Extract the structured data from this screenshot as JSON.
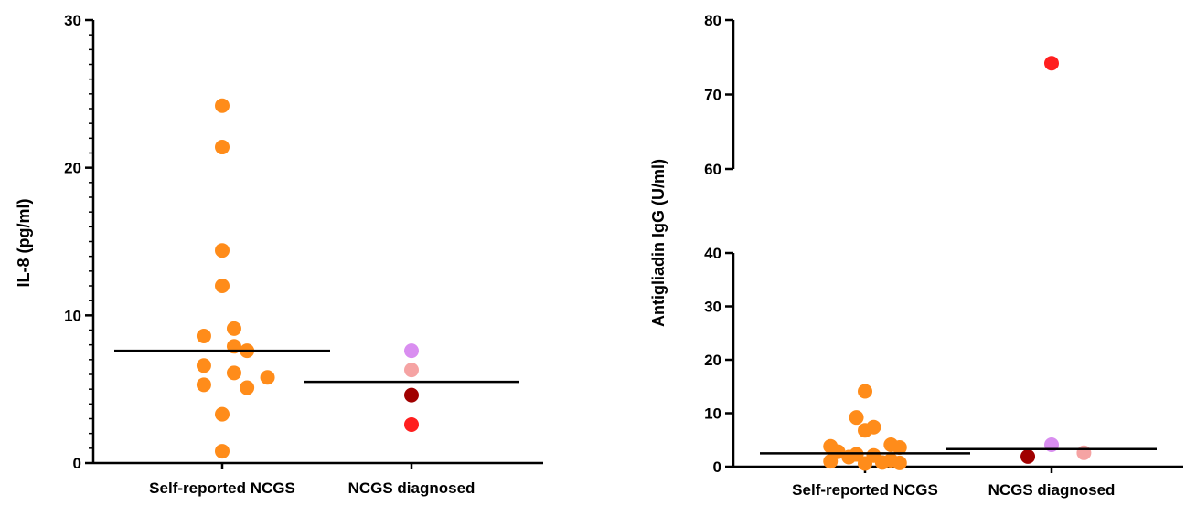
{
  "chart_data": [
    {
      "type": "scatter",
      "title": "",
      "xlabel": "",
      "ylabel": "IL-8 (pg/ml)",
      "ylim": [
        0,
        30
      ],
      "yticks": [
        0,
        10,
        20,
        30
      ],
      "ytick_labels": [
        "0",
        "10",
        "20",
        "30"
      ],
      "categories": [
        "Self-reported NCGS",
        "NCGS diagnosed"
      ],
      "grid": false,
      "series": [
        {
          "category": "Self-reported NCGS",
          "color": "#ff8c1a",
          "points": [
            {
              "x": 0.0,
              "y": 24.2
            },
            {
              "x": 0.0,
              "y": 21.4
            },
            {
              "x": 0.0,
              "y": 14.4
            },
            {
              "x": 0.0,
              "y": 12.0
            },
            {
              "x": -0.17,
              "y": 8.6
            },
            {
              "x": 0.11,
              "y": 9.1
            },
            {
              "x": 0.11,
              "y": 7.9
            },
            {
              "x": 0.23,
              "y": 7.6
            },
            {
              "x": -0.17,
              "y": 6.6
            },
            {
              "x": 0.11,
              "y": 6.1
            },
            {
              "x": 0.42,
              "y": 5.8
            },
            {
              "x": -0.17,
              "y": 5.3
            },
            {
              "x": 0.23,
              "y": 5.1
            },
            {
              "x": 0.0,
              "y": 3.3
            },
            {
              "x": 0.0,
              "y": 0.8
            }
          ],
          "median": 7.6
        },
        {
          "category": "NCGS diagnosed",
          "points": [
            {
              "x": 0.0,
              "y": 7.6,
              "color": "#d98ef0"
            },
            {
              "x": 0.0,
              "y": 6.3,
              "color": "#f5a3a3"
            },
            {
              "x": 0.0,
              "y": 4.6,
              "color": "#a00000"
            },
            {
              "x": 0.0,
              "y": 2.6,
              "color": "#ff1f1f"
            }
          ],
          "median": 5.5
        }
      ]
    },
    {
      "type": "scatter",
      "title": "",
      "xlabel": "",
      "ylabel": "Antigliadin IgG (U/ml)",
      "ylim": [
        0,
        80
      ],
      "y_axis_break": [
        40,
        60
      ],
      "yticks": [
        0,
        10,
        20,
        30,
        40,
        60,
        70,
        80
      ],
      "ytick_labels": [
        "0",
        "10",
        "20",
        "30",
        "40",
        "60",
        "70",
        "80"
      ],
      "categories": [
        "Self-reported NCGS",
        "NCGS diagnosed"
      ],
      "grid": false,
      "series": [
        {
          "category": "Self-reported NCGS",
          "color": "#ff8c1a",
          "points": [
            {
              "x": -0.32,
              "y": 3.8
            },
            {
              "x": -0.25,
              "y": 2.8
            },
            {
              "x": -0.15,
              "y": 1.8
            },
            {
              "x": -0.08,
              "y": 2.3
            },
            {
              "x": -0.32,
              "y": 1.0
            },
            {
              "x": -0.08,
              "y": 9.2
            },
            {
              "x": 0.0,
              "y": 14.1
            },
            {
              "x": 0.0,
              "y": 6.8
            },
            {
              "x": 0.0,
              "y": 0.6
            },
            {
              "x": 0.08,
              "y": 7.4
            },
            {
              "x": 0.08,
              "y": 2.1
            },
            {
              "x": 0.16,
              "y": 0.8
            },
            {
              "x": 0.24,
              "y": 4.1
            },
            {
              "x": 0.24,
              "y": 1.2
            },
            {
              "x": 0.32,
              "y": 3.6
            },
            {
              "x": 0.32,
              "y": 0.7
            }
          ],
          "median": 2.5
        },
        {
          "category": "NCGS diagnosed",
          "points": [
            {
              "x": 0.0,
              "y": 74.2,
              "color": "#ff1f1f"
            },
            {
              "x": 0.0,
              "y": 4.1,
              "color": "#d98ef0"
            },
            {
              "x": -0.22,
              "y": 1.9,
              "color": "#a00000"
            },
            {
              "x": 0.3,
              "y": 2.6,
              "color": "#f5a3a3"
            }
          ],
          "median": 3.3
        }
      ]
    }
  ]
}
